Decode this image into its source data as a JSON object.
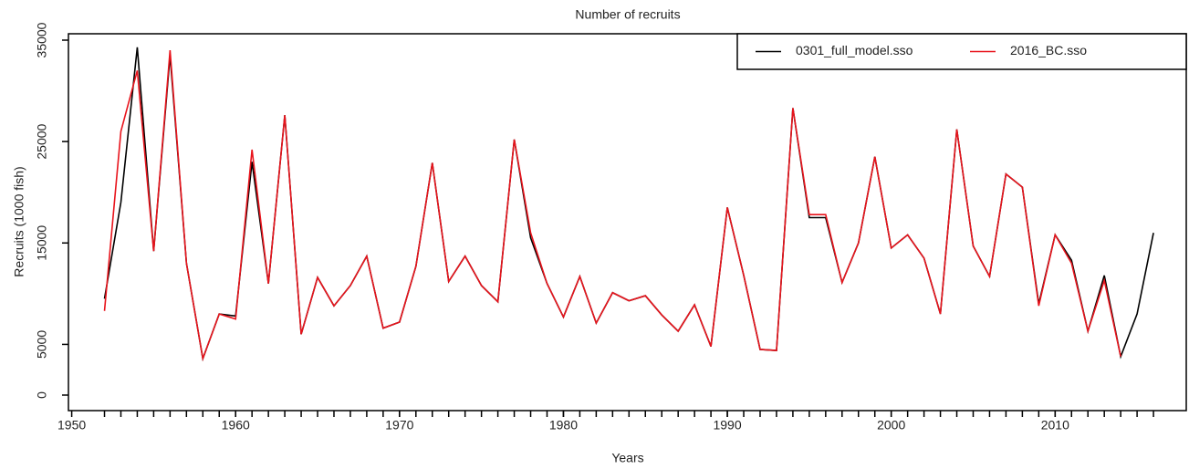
{
  "chart_data": {
    "type": "line",
    "title": "Number of recruits",
    "xlabel": "Years",
    "ylabel": "Recruits (1000 fish)",
    "x": [
      1952,
      1953,
      1954,
      1955,
      1956,
      1957,
      1958,
      1959,
      1960,
      1961,
      1962,
      1963,
      1964,
      1965,
      1966,
      1967,
      1968,
      1969,
      1970,
      1971,
      1972,
      1973,
      1974,
      1975,
      1976,
      1977,
      1978,
      1979,
      1980,
      1981,
      1982,
      1983,
      1984,
      1985,
      1986,
      1987,
      1988,
      1989,
      1990,
      1991,
      1992,
      1993,
      1994,
      1995,
      1996,
      1997,
      1998,
      1999,
      2000,
      2001,
      2002,
      2003,
      2004,
      2005,
      2006,
      2007,
      2008,
      2009,
      2010,
      2011,
      2012,
      2013,
      2014,
      2015,
      2016
    ],
    "series": [
      {
        "name": "0301_full_model.sso",
        "color": "#000000",
        "values": [
          9500,
          19000,
          34300,
          14200,
          33500,
          13000,
          3600,
          8000,
          7800,
          23000,
          11000,
          27600,
          6000,
          11600,
          8800,
          10800,
          13700,
          6600,
          7200,
          12700,
          22900,
          11200,
          13700,
          10800,
          9200,
          25200,
          15500,
          11000,
          7700,
          11700,
          7100,
          10100,
          9300,
          9800,
          7900,
          6300,
          8900,
          4800,
          18500,
          11800,
          4500,
          4400,
          28300,
          17500,
          17500,
          11100,
          15000,
          23500,
          14500,
          15800,
          13500,
          8000,
          26200,
          14700,
          11700,
          21800,
          20500,
          9000,
          15800,
          13300,
          6300,
          11800,
          3800,
          8000,
          16000
        ]
      },
      {
        "name": "2016_BC.sso",
        "color": "#e8141c",
        "values": [
          8300,
          26000,
          32000,
          14200,
          34000,
          13000,
          3600,
          8000,
          7500,
          24200,
          11000,
          27600,
          6000,
          11600,
          8800,
          10800,
          13700,
          6600,
          7200,
          12700,
          22900,
          11200,
          13700,
          10800,
          9200,
          25200,
          16000,
          11000,
          7700,
          11700,
          7100,
          10100,
          9300,
          9800,
          7900,
          6300,
          8900,
          4800,
          18500,
          11800,
          4500,
          4400,
          28300,
          17800,
          17800,
          11100,
          15000,
          23500,
          14500,
          15800,
          13500,
          8000,
          26200,
          14700,
          11700,
          21800,
          20500,
          8800,
          15800,
          13000,
          6300,
          11300,
          3800,
          null,
          null
        ]
      }
    ],
    "xlim": [
      1949.8,
      2018.0
    ],
    "xticks": [
      1950,
      1960,
      1970,
      1980,
      1990,
      2000,
      2010
    ],
    "ylim": [
      -1530,
      35630
    ],
    "yticks": [
      0,
      5000,
      15000,
      25000,
      35000
    ],
    "legend": "top-right"
  }
}
